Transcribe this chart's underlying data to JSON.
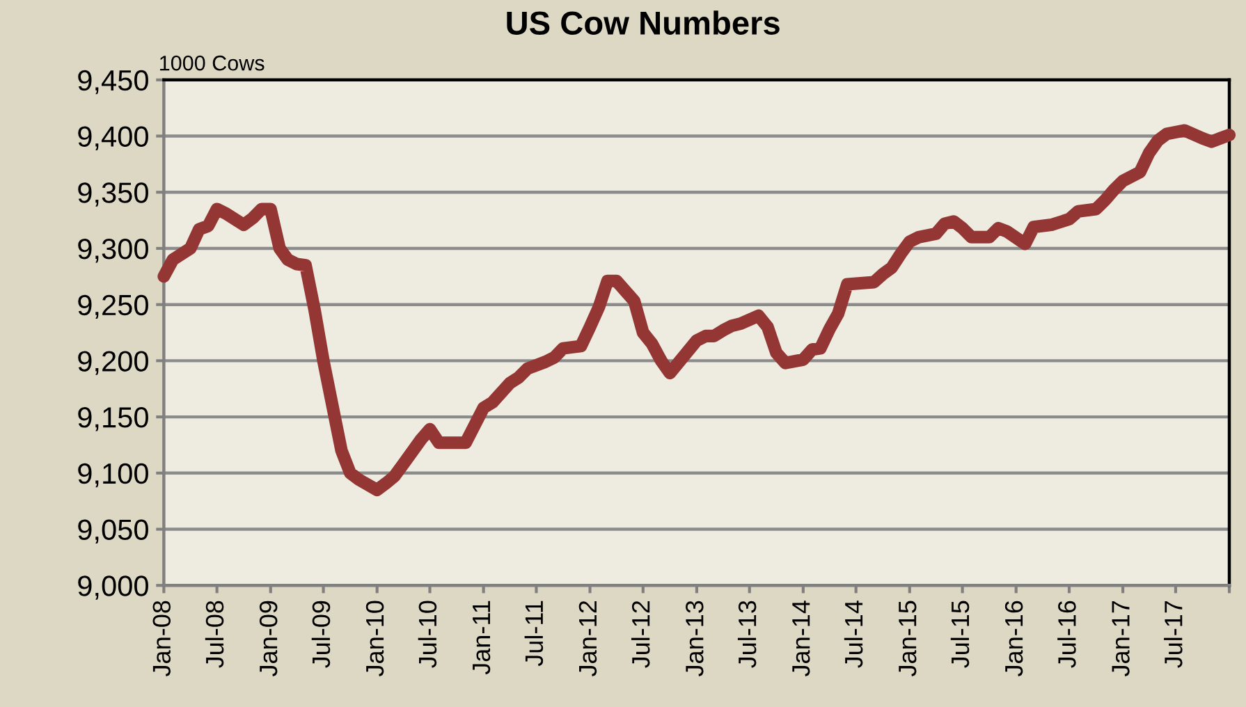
{
  "chart_data": {
    "type": "line",
    "title": "US Cow Numbers",
    "ylabel": "1000 Cows",
    "x": [
      "2008-01",
      "2008-02",
      "2008-04",
      "2008-05",
      "2008-06",
      "2008-07",
      "2008-08",
      "2008-10",
      "2008-11",
      "2008-12",
      "2009-01",
      "2009-02",
      "2009-03",
      "2009-04",
      "2009-05",
      "2009-06",
      "2009-07",
      "2009-08",
      "2009-09",
      "2009-10",
      "2009-11",
      "2010-01",
      "2010-02",
      "2010-03",
      "2010-04",
      "2010-06",
      "2010-07",
      "2010-08",
      "2010-11",
      "2011-01",
      "2011-02",
      "2011-04",
      "2011-05",
      "2011-06",
      "2011-08",
      "2011-09",
      "2011-10",
      "2011-12",
      "2012-01",
      "2012-02",
      "2012-03",
      "2012-04",
      "2012-06",
      "2012-07",
      "2012-08",
      "2012-09",
      "2012-10",
      "2013-01",
      "2013-02",
      "2013-03",
      "2013-04",
      "2013-05",
      "2013-06",
      "2013-08",
      "2013-09",
      "2013-10",
      "2013-11",
      "2014-01",
      "2014-02",
      "2014-03",
      "2014-04",
      "2014-05",
      "2014-06",
      "2014-09",
      "2014-10",
      "2014-11",
      "2014-12",
      "2015-01",
      "2015-02",
      "2015-04",
      "2015-05",
      "2015-06",
      "2015-07",
      "2015-08",
      "2015-10",
      "2015-11",
      "2015-12",
      "2016-02",
      "2016-03",
      "2016-05",
      "2016-07",
      "2016-08",
      "2016-10",
      "2016-11",
      "2016-12",
      "2017-01",
      "2017-03",
      "2017-04",
      "2017-05",
      "2017-06",
      "2017-08",
      "2017-10",
      "2017-11",
      "2017-12",
      "2018-01"
    ],
    "series": [
      {
        "color": "#943634",
        "values": [
          9275,
          9290,
          9300,
          9317,
          9320,
          9335,
          9331,
          9321,
          9327,
          9335,
          9335,
          9300,
          9290,
          9286,
          9285,
          9245,
          9200,
          9160,
          9120,
          9100,
          9094,
          9085,
          9091,
          9097,
          9108,
          9130,
          9139,
          9127,
          9127,
          9158,
          9163,
          9180,
          9185,
          9193,
          9199,
          9203,
          9211,
          9213,
          9230,
          9248,
          9271,
          9271,
          9253,
          9225,
          9215,
          9200,
          9189,
          9218,
          9222,
          9222,
          9227,
          9231,
          9233,
          9240,
          9230,
          9207,
          9198,
          9201,
          9210,
          9211,
          9228,
          9242,
          9268,
          9270,
          9277,
          9283,
          9295,
          9306,
          9310,
          9313,
          9322,
          9324,
          9318,
          9310,
          9310,
          9318,
          9315,
          9304,
          9319,
          9321,
          9326,
          9333,
          9335,
          9343,
          9352,
          9360,
          9368,
          9385,
          9396,
          9402,
          9405,
          9398,
          9395,
          9398,
          9401
        ]
      }
    ],
    "xlim": [
      "2008-01",
      "2018-01"
    ],
    "xticks": [
      {
        "value": "2008-01",
        "label": "Jan-08"
      },
      {
        "value": "2008-07",
        "label": "Jul-08"
      },
      {
        "value": "2009-01",
        "label": "Jan-09"
      },
      {
        "value": "2009-07",
        "label": "Jul-09"
      },
      {
        "value": "2010-01",
        "label": "Jan-10"
      },
      {
        "value": "2010-07",
        "label": "Jul-10"
      },
      {
        "value": "2011-01",
        "label": "Jan-11"
      },
      {
        "value": "2011-07",
        "label": "Jul-11"
      },
      {
        "value": "2012-01",
        "label": "Jan-12"
      },
      {
        "value": "2012-07",
        "label": "Jul-12"
      },
      {
        "value": "2013-01",
        "label": "Jan-13"
      },
      {
        "value": "2013-07",
        "label": "Jul-13"
      },
      {
        "value": "2014-01",
        "label": "Jan-14"
      },
      {
        "value": "2014-07",
        "label": "Jul-14"
      },
      {
        "value": "2015-01",
        "label": "Jan-15"
      },
      {
        "value": "2015-07",
        "label": "Jul-15"
      },
      {
        "value": "2016-01",
        "label": "Jan-16"
      },
      {
        "value": "2016-07",
        "label": "Jul-16"
      },
      {
        "value": "2017-01",
        "label": "Jan-17"
      },
      {
        "value": "2017-07",
        "label": "Jul-17"
      },
      {
        "value": "2018-01",
        "label": null
      }
    ],
    "ylim": [
      9000,
      9450
    ],
    "yticks": [
      {
        "value": 9000,
        "label": "9,000"
      },
      {
        "value": 9050,
        "label": "9,050"
      },
      {
        "value": 9100,
        "label": "9,100"
      },
      {
        "value": 9150,
        "label": "9,150"
      },
      {
        "value": 9200,
        "label": "9,200"
      },
      {
        "value": 9250,
        "label": "9,250"
      },
      {
        "value": 9300,
        "label": "9,300"
      },
      {
        "value": 9350,
        "label": "9,350"
      },
      {
        "value": 9400,
        "label": "9,400"
      },
      {
        "value": 9450,
        "label": "9,450"
      }
    ],
    "grid": "y",
    "marker": "none",
    "line_style": "solid"
  }
}
